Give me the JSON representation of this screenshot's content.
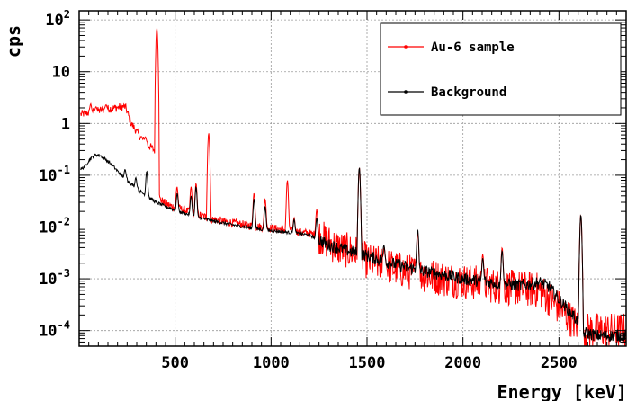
{
  "chart_data": {
    "type": "line",
    "xlabel": "Energy [keV]",
    "ylabel": "cps",
    "xlim": [
      0,
      2850
    ],
    "ylim": [
      5e-05,
      150
    ],
    "yscale": "log",
    "grid": true,
    "legend_position": "top-right",
    "x_ticks": [
      500,
      1000,
      1500,
      2000,
      2500
    ],
    "x_tick_labels": [
      "500",
      "1000",
      "1500",
      "2000",
      "2500"
    ],
    "y_ticks": [
      0.0001,
      0.001,
      0.01,
      0.1,
      1,
      10,
      100
    ],
    "y_tick_labels": [
      {
        "base": "10",
        "exp": "-4"
      },
      {
        "base": "10",
        "exp": "-3"
      },
      {
        "base": "10",
        "exp": "-2"
      },
      {
        "base": "10",
        "exp": "-1"
      },
      {
        "base": "1",
        "exp": ""
      },
      {
        "base": "10",
        "exp": ""
      },
      {
        "base": "10",
        "exp": "2"
      }
    ],
    "series": [
      {
        "name": "Au-6 sample",
        "color": "#ff0000",
        "x": [
          10,
          40,
          70,
          100,
          130,
          160,
          190,
          220,
          240,
          255,
          270,
          290,
          310,
          330,
          345,
          360,
          380,
          395,
          405,
          412,
          420,
          440,
          470,
          500,
          550,
          600,
          650,
          700,
          800,
          900,
          1000,
          1100,
          1200,
          1250,
          1300,
          1350,
          1400,
          1460,
          1500,
          1600,
          1700,
          1800,
          1900,
          2000,
          2100,
          2200,
          2300,
          2400,
          2500,
          2550,
          2600,
          2614,
          2630,
          2700,
          2800,
          2850
        ],
        "values": [
          1.5,
          1.6,
          1.65,
          1.75,
          1.85,
          1.95,
          2.0,
          2.1,
          2.1,
          1.5,
          1.0,
          0.8,
          0.6,
          0.5,
          0.43,
          0.38,
          0.33,
          0.3,
          0.3,
          0.05,
          0.035,
          0.03,
          0.026,
          0.024,
          0.021,
          0.018,
          0.016,
          0.014,
          0.012,
          0.0105,
          0.0095,
          0.0085,
          0.0075,
          0.0068,
          0.005,
          0.004,
          0.0035,
          0.003,
          0.0022,
          0.0018,
          0.0014,
          0.0012,
          0.001,
          0.0009,
          0.0008,
          0.0007,
          0.00065,
          0.0006,
          0.00028,
          0.00018,
          0.00012,
          0.00012,
          0.0001,
          0.0001,
          0.0001,
          0.0001
        ],
        "peaks": [
          {
            "x": 60,
            "y": 2.4
          },
          {
            "x": 88,
            "y": 2.1
          },
          {
            "x": 140,
            "y": 2.3
          },
          {
            "x": 345,
            "y": 0.55
          },
          {
            "x": 405,
            "y": 70
          },
          {
            "x": 675,
            "y": 0.65
          },
          {
            "x": 510,
            "y": 0.06
          },
          {
            "x": 583,
            "y": 0.06
          },
          {
            "x": 609,
            "y": 0.07
          },
          {
            "x": 911,
            "y": 0.045
          },
          {
            "x": 969,
            "y": 0.035
          },
          {
            "x": 1085,
            "y": 0.08
          },
          {
            "x": 1120,
            "y": 0.015
          },
          {
            "x": 1238,
            "y": 0.022
          },
          {
            "x": 1460,
            "y": 0.14
          },
          {
            "x": 1590,
            "y": 0.004
          },
          {
            "x": 1764,
            "y": 0.008
          },
          {
            "x": 2103,
            "y": 0.003
          },
          {
            "x": 2204,
            "y": 0.004
          },
          {
            "x": 2614,
            "y": 0.017
          }
        ]
      },
      {
        "name": "Background",
        "color": "#000000",
        "x": [
          10,
          30,
          50,
          70,
          90,
          110,
          140,
          170,
          200,
          250,
          300,
          350,
          400,
          450,
          500,
          600,
          700,
          800,
          900,
          1000,
          1100,
          1200,
          1300,
          1400,
          1500,
          1600,
          1700,
          1800,
          1900,
          2000,
          2100,
          2200,
          2300,
          2400,
          2450,
          2500,
          2550,
          2600,
          2620,
          2640,
          2700,
          2800,
          2850
        ],
        "values": [
          0.13,
          0.15,
          0.19,
          0.23,
          0.25,
          0.24,
          0.2,
          0.16,
          0.12,
          0.08,
          0.055,
          0.04,
          0.03,
          0.025,
          0.021,
          0.016,
          0.013,
          0.011,
          0.0095,
          0.0085,
          0.0078,
          0.007,
          0.0045,
          0.0035,
          0.0028,
          0.0021,
          0.0017,
          0.0014,
          0.0012,
          0.001,
          0.0009,
          0.0008,
          0.00075,
          0.00085,
          0.0007,
          0.0004,
          0.00025,
          0.00015,
          8e-05,
          9e-05,
          8e-05,
          8e-05,
          8e-05
        ],
        "peaks": [
          {
            "x": 239,
            "y": 0.13
          },
          {
            "x": 295,
            "y": 0.09
          },
          {
            "x": 352,
            "y": 0.12
          },
          {
            "x": 511,
            "y": 0.045
          },
          {
            "x": 583,
            "y": 0.04
          },
          {
            "x": 609,
            "y": 0.06
          },
          {
            "x": 911,
            "y": 0.035
          },
          {
            "x": 969,
            "y": 0.025
          },
          {
            "x": 1120,
            "y": 0.014
          },
          {
            "x": 1238,
            "y": 0.015
          },
          {
            "x": 1460,
            "y": 0.14
          },
          {
            "x": 1588,
            "y": 0.0045
          },
          {
            "x": 1764,
            "y": 0.009
          },
          {
            "x": 2103,
            "y": 0.0025
          },
          {
            "x": 2204,
            "y": 0.0035
          },
          {
            "x": 2614,
            "y": 0.017
          }
        ]
      }
    ]
  }
}
